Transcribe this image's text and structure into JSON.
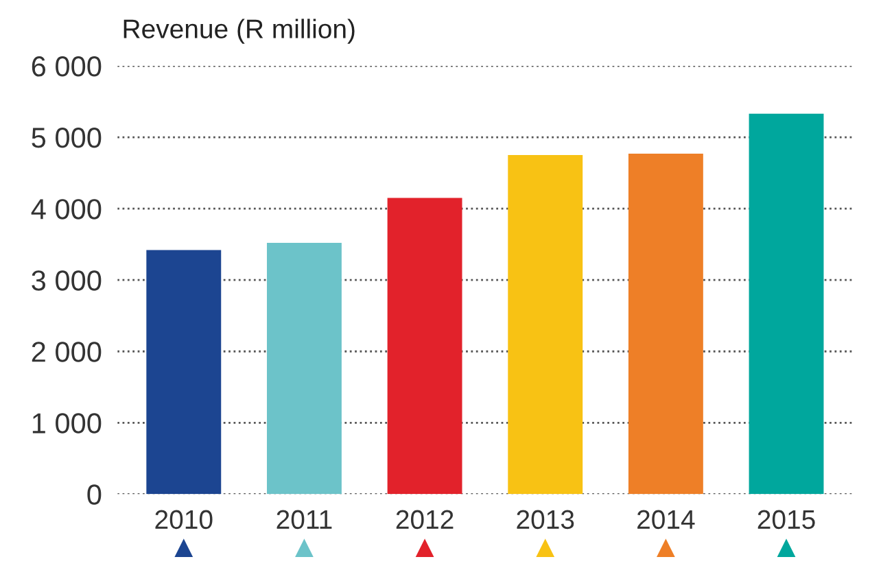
{
  "chart_data": {
    "type": "bar",
    "title": "Revenue (R million)",
    "categories": [
      "2010",
      "2011",
      "2012",
      "2013",
      "2014",
      "2015"
    ],
    "values": [
      3420,
      3520,
      4150,
      4750,
      4770,
      5330
    ],
    "colors": [
      "#1c4591",
      "#6cc3c9",
      "#e2222b",
      "#f8c214",
      "#ee7f27",
      "#00a79d"
    ],
    "ylim": [
      0,
      6000
    ],
    "yticks": [
      {
        "value": 0,
        "label": "0"
      },
      {
        "value": 1000,
        "label": "1 000"
      },
      {
        "value": 2000,
        "label": "2 000"
      },
      {
        "value": 3000,
        "label": "3 000"
      },
      {
        "value": 4000,
        "label": "4 000"
      },
      {
        "value": 5000,
        "label": "5 000"
      },
      {
        "value": 6000,
        "label": "6 000"
      }
    ],
    "grid": "y",
    "line_style": "dotted"
  }
}
